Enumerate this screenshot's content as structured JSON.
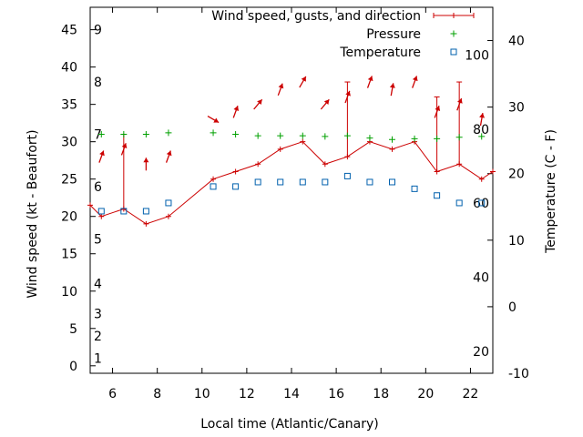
{
  "chart_data": {
    "type": "line",
    "xlabel": "Local time (Atlantic/Canary)",
    "ylabel": "Wind speed (kt - Beaufort)",
    "y2label": "Temperature (C - F)",
    "xlim": [
      5,
      23
    ],
    "ylim": [
      -1,
      48
    ],
    "y2lim": [
      -10,
      45
    ],
    "grid": false,
    "legend_position": "top-right",
    "x_ticks": [
      "6",
      "8",
      "10",
      "12",
      "14",
      "16",
      "18",
      "20",
      "22"
    ],
    "y_ticks": [
      "0",
      "5",
      "10",
      "15",
      "20",
      "25",
      "30",
      "35",
      "40",
      "45"
    ],
    "y2_ticks": [
      "-10",
      "0",
      "10",
      "20",
      "30",
      "40"
    ],
    "beaufort_labels": [
      {
        "text": "1",
        "y": 1
      },
      {
        "text": "2",
        "y": 4
      },
      {
        "text": "3",
        "y": 7
      },
      {
        "text": "4",
        "y": 11
      },
      {
        "text": "5",
        "y": 17
      },
      {
        "text": "6",
        "y": 24
      },
      {
        "text": "7",
        "y": 31
      },
      {
        "text": "8",
        "y": 38
      },
      {
        "text": "9",
        "y": 45
      }
    ],
    "fahrenheit_labels": [
      {
        "text": "20",
        "c": -6.7
      },
      {
        "text": "40",
        "c": 4.4
      },
      {
        "text": "60",
        "c": 15.6
      },
      {
        "text": "80",
        "c": 26.7
      },
      {
        "text": "100",
        "c": 37.8
      }
    ],
    "series": [
      {
        "name": "Wind speed, gusts, and direction",
        "color": "#cc0000",
        "points": [
          {
            "x": 5.0,
            "y": 21.5,
            "gust": null,
            "dir": null
          },
          {
            "x": 5.5,
            "y": 20,
            "gust": null,
            "dir": 200
          },
          {
            "x": 6.5,
            "y": 21,
            "gust": 31,
            "dir": 200
          },
          {
            "x": 7.5,
            "y": 19,
            "gust": null,
            "dir": 180
          },
          {
            "x": 8.5,
            "y": 20,
            "gust": null,
            "dir": 200
          },
          {
            "x": 10.5,
            "y": 25,
            "gust": null,
            "dir": 300
          },
          {
            "x": 11.5,
            "y": 26,
            "gust": null,
            "dir": 200
          },
          {
            "x": 12.5,
            "y": 27,
            "gust": null,
            "dir": 220
          },
          {
            "x": 13.5,
            "y": 29,
            "gust": null,
            "dir": 200
          },
          {
            "x": 14.5,
            "y": 30,
            "gust": null,
            "dir": 210
          },
          {
            "x": 15.5,
            "y": 27,
            "gust": null,
            "dir": 220
          },
          {
            "x": 16.5,
            "y": 28,
            "gust": 38,
            "dir": 200
          },
          {
            "x": 17.5,
            "y": 30,
            "gust": null,
            "dir": 200
          },
          {
            "x": 18.5,
            "y": 29,
            "gust": null,
            "dir": 190
          },
          {
            "x": 19.5,
            "y": 30,
            "gust": null,
            "dir": 200
          },
          {
            "x": 20.5,
            "y": 26,
            "gust": 36,
            "dir": 200
          },
          {
            "x": 21.5,
            "y": 27,
            "gust": 38,
            "dir": 200
          },
          {
            "x": 22.5,
            "y": 25,
            "gust": null,
            "dir": 190
          },
          {
            "x": 23.0,
            "y": 26,
            "gust": null,
            "dir": null
          }
        ]
      },
      {
        "name": "Pressure",
        "color": "#00a000",
        "points": [
          {
            "x": 5.5,
            "y": 31
          },
          {
            "x": 6.5,
            "y": 31
          },
          {
            "x": 7.5,
            "y": 31
          },
          {
            "x": 8.5,
            "y": 31.2
          },
          {
            "x": 10.5,
            "y": 31.2
          },
          {
            "x": 11.5,
            "y": 31
          },
          {
            "x": 12.5,
            "y": 30.8
          },
          {
            "x": 13.5,
            "y": 30.8
          },
          {
            "x": 14.5,
            "y": 30.8
          },
          {
            "x": 15.5,
            "y": 30.7
          },
          {
            "x": 16.5,
            "y": 30.8
          },
          {
            "x": 17.5,
            "y": 30.5
          },
          {
            "x": 18.5,
            "y": 30.3
          },
          {
            "x": 19.5,
            "y": 30.4
          },
          {
            "x": 20.5,
            "y": 30.4
          },
          {
            "x": 21.5,
            "y": 30.6
          },
          {
            "x": 22.5,
            "y": 30.7
          }
        ]
      },
      {
        "name": "Temperature",
        "color": "#0060ad",
        "points": [
          {
            "x": 5.5,
            "y": 20.7
          },
          {
            "x": 6.5,
            "y": 20.7
          },
          {
            "x": 7.5,
            "y": 20.7
          },
          {
            "x": 8.5,
            "y": 21.8
          },
          {
            "x": 10.5,
            "y": 24.0
          },
          {
            "x": 11.5,
            "y": 24.0
          },
          {
            "x": 12.5,
            "y": 24.6
          },
          {
            "x": 13.5,
            "y": 24.6
          },
          {
            "x": 14.5,
            "y": 24.6
          },
          {
            "x": 15.5,
            "y": 24.6
          },
          {
            "x": 16.5,
            "y": 25.4
          },
          {
            "x": 17.5,
            "y": 24.6
          },
          {
            "x": 18.5,
            "y": 24.6
          },
          {
            "x": 19.5,
            "y": 23.7
          },
          {
            "x": 20.5,
            "y": 22.8
          },
          {
            "x": 21.5,
            "y": 21.8
          },
          {
            "x": 22.5,
            "y": 21.8
          }
        ]
      }
    ]
  }
}
